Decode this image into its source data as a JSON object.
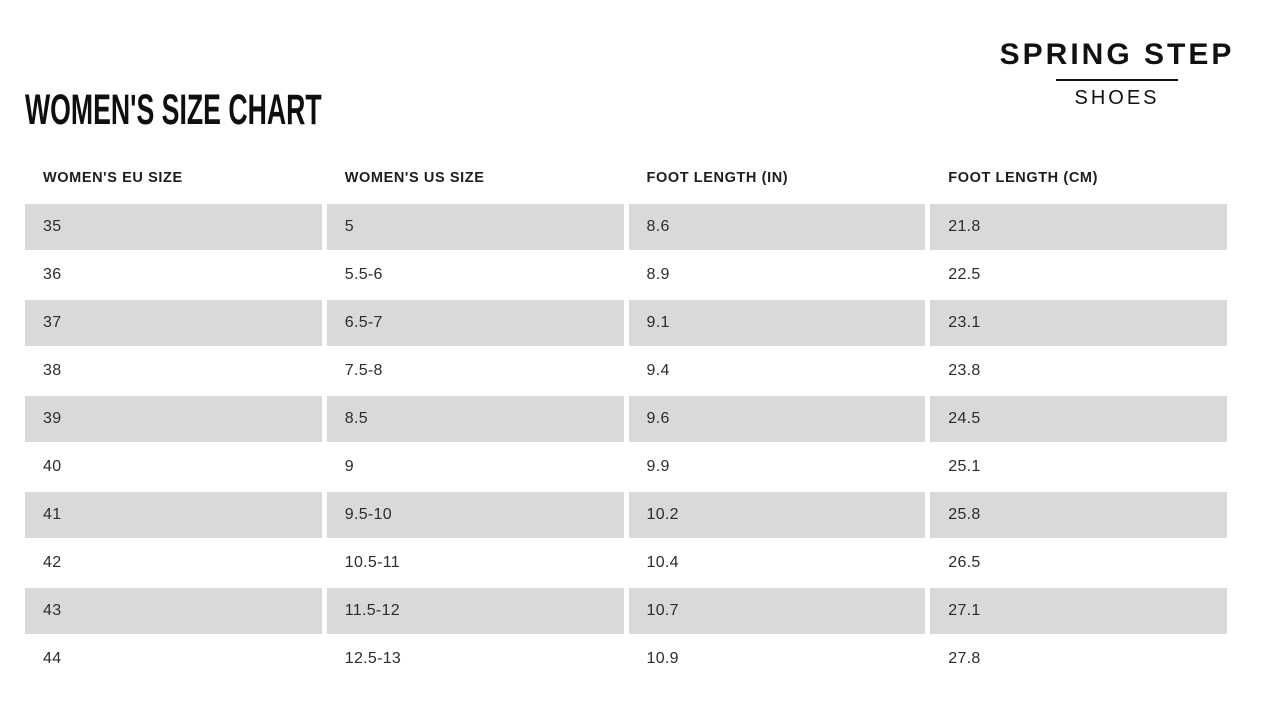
{
  "page_title": "WOMEN'S SIZE CHART",
  "brand": {
    "name": "SPRING STEP",
    "sub": "SHOES"
  },
  "colors": {
    "row_band_gray": "#d9d9d9",
    "text_dark": "#2c2c2c",
    "brand_black": "#111111"
  },
  "chart_data": {
    "type": "table",
    "title": "WOMEN'S SIZE CHART",
    "columns": [
      "WOMEN'S EU SIZE",
      "WOMEN'S US SIZE",
      "FOOT LENGTH (IN)",
      "FOOT LENGTH (CM)"
    ],
    "rows": [
      [
        "35",
        "5",
        "8.6",
        "21.8"
      ],
      [
        "36",
        "5.5-6",
        "8.9",
        "22.5"
      ],
      [
        "37",
        "6.5-7",
        "9.1",
        "23.1"
      ],
      [
        "38",
        "7.5-8",
        "9.4",
        "23.8"
      ],
      [
        "39",
        "8.5",
        "9.6",
        "24.5"
      ],
      [
        "40",
        "9",
        "9.9",
        "25.1"
      ],
      [
        "41",
        "9.5-10",
        "10.2",
        "25.8"
      ],
      [
        "42",
        "10.5-11",
        "10.4",
        "26.5"
      ],
      [
        "43",
        "11.5-12",
        "10.7",
        "27.1"
      ],
      [
        "44",
        "12.5-13",
        "10.9",
        "27.8"
      ]
    ],
    "layout": {
      "striping": "alternating rows, first row shaded gray",
      "grid": "off",
      "column_gutters": "white 5px gaps between shaded cells"
    }
  }
}
